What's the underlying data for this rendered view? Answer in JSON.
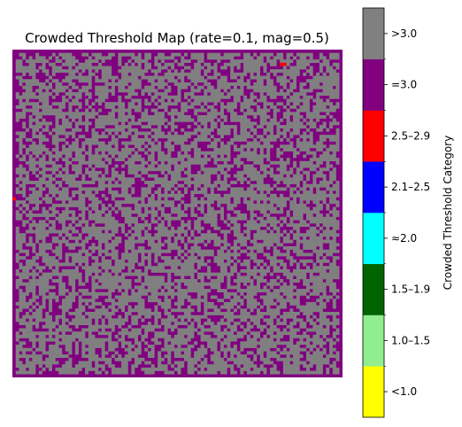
{
  "chart_data": {
    "type": "heatmap",
    "title": "Crowded Threshold Map (rate=0.1, mag=0.5)",
    "grid": {
      "rows": 100,
      "cols": 100,
      "axes_visible": false
    },
    "cell_fraction_estimate": {
      ">3.0": 0.65,
      "=3.0": 0.348,
      "2.5–2.9": 0.002
    },
    "red_cells": [
      {
        "row": 4,
        "col": 81
      },
      {
        "row": 4,
        "col": 82
      },
      {
        "row": 45,
        "col": 0
      }
    ],
    "colorbar": {
      "label": "Crowded Threshold Category",
      "categories": [
        {
          "label": "<1.0",
          "color": "#ffff00"
        },
        {
          "label": "1.0–1.5",
          "color": "#90ee90"
        },
        {
          "label": "1.5–1.9",
          "color": "#006400"
        },
        {
          "label": "≈2.0",
          "color": "#00ffff"
        },
        {
          "label": "2.1–2.5",
          "color": "#0000ff"
        },
        {
          "label": "2.5–2.9",
          "color": "#ff0000"
        },
        {
          "label": "=3.0",
          "color": "#800080"
        },
        {
          "label": ">3.0",
          "color": "#808080"
        }
      ]
    }
  }
}
